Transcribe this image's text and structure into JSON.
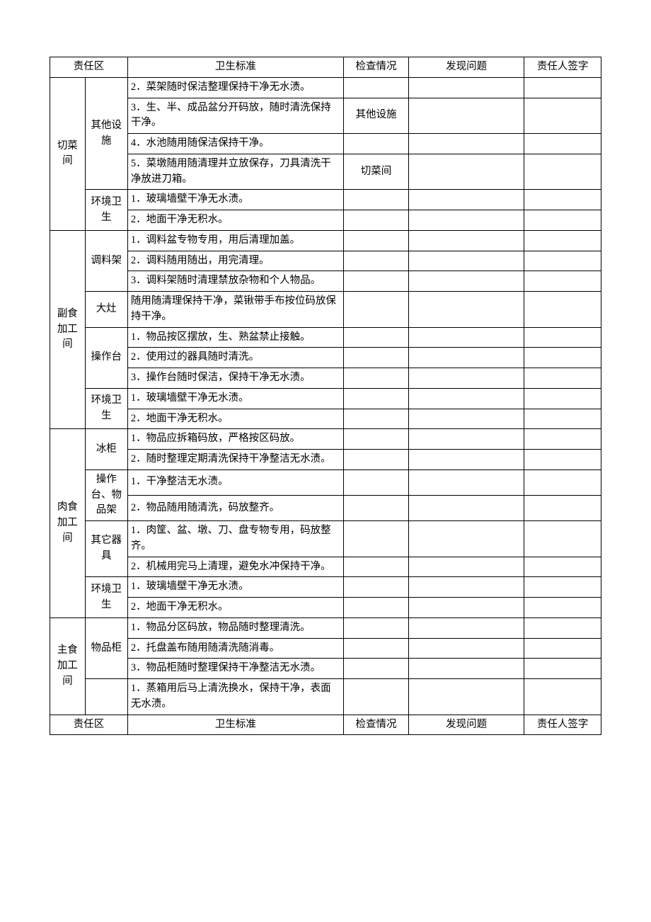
{
  "columns": {
    "area": "责任区",
    "standard": "卫生标准",
    "check": "检查情况",
    "problem": "发现问题",
    "sign": "责任人签字"
  },
  "sections": [
    {
      "area": "切菜间",
      "groups": [
        {
          "sub": "其他设施",
          "items": [
            {
              "std": "2．菜架随时保洁整理保持干净无水渍。",
              "chk": ""
            },
            {
              "std": "3．生、半、成品盆分开码放，随时清洗保持干净。",
              "chk": "其他设施"
            },
            {
              "std": "4．水池随用随保洁保持干净。",
              "chk": ""
            },
            {
              "std": "5．菜墩随用随清理并立放保存，刀具清洗干净放进刀箱。",
              "chk": "切菜间"
            }
          ]
        },
        {
          "sub": "环境卫生",
          "items": [
            {
              "std": "1．玻璃墙壁干净无水渍。",
              "chk": ""
            },
            {
              "std": "2．地面干净无积水。",
              "chk": ""
            }
          ]
        }
      ]
    },
    {
      "area": "副食加工间",
      "groups": [
        {
          "sub": "调料架",
          "items": [
            {
              "std": "1．调料盆专物专用，用后清理加盖。",
              "chk": ""
            },
            {
              "std": "2．调料随用随出，用完清理。",
              "chk": ""
            },
            {
              "std": "3．调料架随时清理禁放杂物和个人物品。",
              "chk": ""
            }
          ]
        },
        {
          "sub": "大灶",
          "items": [
            {
              "std": "随用随清理保持干净，菜锹带手布按位码放保持干净。",
              "chk": ""
            }
          ]
        },
        {
          "sub": "操作台",
          "items": [
            {
              "std": "1．物品按区摆放，生、熟盆禁止接触。",
              "chk": ""
            },
            {
              "std": "2．使用过的器具随时清洗。",
              "chk": ""
            },
            {
              "std": "3．操作台随时保洁，保持干净无水渍。",
              "chk": ""
            }
          ]
        },
        {
          "sub": "环境卫生",
          "items": [
            {
              "std": "1．玻璃墙壁干净无水渍。",
              "chk": ""
            },
            {
              "std": "2．地面干净无积水。",
              "chk": ""
            }
          ]
        }
      ]
    },
    {
      "area": "肉食加工间",
      "groups": [
        {
          "sub": "冰柜",
          "items": [
            {
              "std": "1．物品应拆箱码放，严格按区码放。",
              "chk": ""
            },
            {
              "std": "2．随时整理定期清洗保持干净整洁无水渍。",
              "chk": ""
            }
          ]
        },
        {
          "sub": "操作台、物品架",
          "items": [
            {
              "std": "1．干净整洁无水渍。",
              "chk": ""
            },
            {
              "std": "2．物品随用随清洗，码放整齐。",
              "chk": ""
            }
          ]
        },
        {
          "sub": "其它器具",
          "items": [
            {
              "std": "1．肉筐、盆、墩、刀、盘专物专用，码放整齐。",
              "chk": ""
            },
            {
              "std": "2．机械用完马上清理，避免水冲保持干净。",
              "chk": ""
            }
          ]
        },
        {
          "sub": "环境卫生",
          "items": [
            {
              "std": "1．玻璃墙壁干净无水渍。",
              "chk": ""
            },
            {
              "std": "2．地面干净无积水。",
              "chk": ""
            }
          ]
        }
      ]
    },
    {
      "area": "主食加工间",
      "groups": [
        {
          "sub": "物品柜",
          "items": [
            {
              "std": "1．物品分区码放，物品随时整理清洗。",
              "chk": ""
            },
            {
              "std": "2．托盘盖布随用随清洗随消毒。",
              "chk": ""
            },
            {
              "std": "3．物品柜随时整理保持干净整洁无水渍。",
              "chk": ""
            }
          ]
        },
        {
          "sub": "",
          "items": [
            {
              "std": "1．蒸箱用后马上清洗换水，保持干净，表面无水渍。",
              "chk": ""
            }
          ]
        }
      ]
    }
  ],
  "style": {
    "border_color": "#000000",
    "background_color": "#ffffff",
    "font_size_pt": 11,
    "font_family": "SimSun"
  }
}
